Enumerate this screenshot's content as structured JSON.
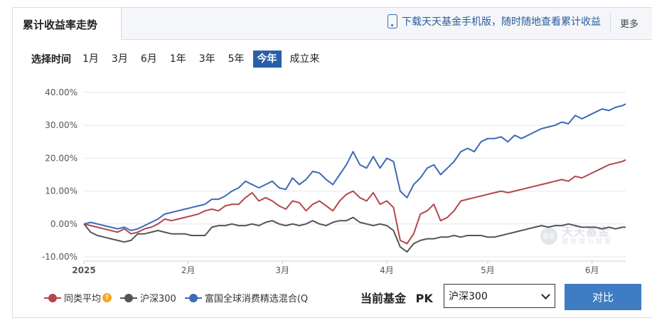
{
  "header": {
    "tab_title": "累计收益率走势",
    "promo_text": "下载天天基金手机版，随时随地查看累计收益",
    "more_label": "更多"
  },
  "time_selector": {
    "label": "选择时间",
    "options": [
      "1月",
      "3月",
      "6月",
      "1年",
      "3年",
      "5年",
      "今年",
      "成立来"
    ],
    "active": "今年"
  },
  "watermark": {
    "main": "天天基金",
    "sub": "镀铁泼与财富",
    "logo": "基金"
  },
  "chart_data": {
    "type": "line",
    "title": "",
    "xlabel": "",
    "ylabel": "",
    "x_ticks": [
      "2025",
      "2月",
      "3月",
      "4月",
      "5月",
      "6月"
    ],
    "x_tick_days": [
      0,
      31,
      59,
      90,
      120,
      151
    ],
    "x_range_days": [
      0,
      161
    ],
    "y_ticks": [
      "40.00%",
      "30.00%",
      "20.00%",
      "10.00%",
      "0.00%",
      "-10.00%"
    ],
    "y_tick_values": [
      40,
      30,
      20,
      10,
      0,
      -10
    ],
    "ylim": [
      -10,
      40
    ],
    "grid": "horizontal",
    "legend_position": "bottom-left",
    "series": [
      {
        "name": "同类平均",
        "color": "#b4474c",
        "x": [
          0,
          2,
          4,
          6,
          8,
          10,
          12,
          14,
          16,
          18,
          20,
          22,
          24,
          26,
          28,
          30,
          32,
          34,
          36,
          38,
          40,
          42,
          44,
          46,
          48,
          50,
          52,
          54,
          56,
          58,
          60,
          62,
          64,
          66,
          68,
          70,
          72,
          74,
          76,
          78,
          80,
          82,
          84,
          86,
          88,
          90,
          92,
          94,
          96,
          98,
          100,
          102,
          104,
          106,
          108,
          110,
          112,
          114,
          116,
          118,
          120,
          122,
          124,
          126,
          128,
          130,
          132,
          134,
          136,
          138,
          140,
          142,
          144,
          146,
          148,
          150,
          152,
          154,
          156,
          158,
          160,
          161
        ],
        "values": [
          0,
          -0.5,
          -1,
          -1.5,
          -2,
          -2.5,
          -1.5,
          -3,
          -2.5,
          -1.5,
          -1,
          0,
          1.5,
          1,
          1.5,
          2,
          2.5,
          3,
          4,
          4.5,
          4,
          5.5,
          6,
          6,
          8,
          9.5,
          7,
          8,
          7,
          5.5,
          4.5,
          7,
          6.5,
          4,
          6,
          7,
          5.5,
          4,
          7,
          9,
          10,
          8,
          7,
          9.5,
          6,
          7,
          5,
          -5,
          -6,
          -3,
          3,
          4,
          6,
          1,
          2,
          4,
          7,
          7.5,
          8,
          8.5,
          9,
          9.5,
          10,
          9.5,
          10,
          10.5,
          11,
          11.5,
          12,
          12.5,
          13,
          13.5,
          13,
          14.5,
          14,
          15,
          16,
          17,
          18,
          18.5,
          19,
          19.5
        ]
      },
      {
        "name": "沪深300",
        "color": "#555555",
        "x": [
          0,
          2,
          4,
          6,
          8,
          10,
          12,
          14,
          16,
          18,
          20,
          22,
          24,
          26,
          28,
          30,
          32,
          34,
          36,
          38,
          40,
          42,
          44,
          46,
          48,
          50,
          52,
          54,
          56,
          58,
          60,
          62,
          64,
          66,
          68,
          70,
          72,
          74,
          76,
          78,
          80,
          82,
          84,
          86,
          88,
          90,
          92,
          94,
          96,
          98,
          100,
          102,
          104,
          106,
          108,
          110,
          112,
          114,
          116,
          118,
          120,
          122,
          124,
          126,
          128,
          130,
          132,
          134,
          136,
          138,
          140,
          142,
          144,
          146,
          148,
          150,
          152,
          154,
          156,
          158,
          160,
          161
        ],
        "values": [
          0,
          -2.5,
          -3.5,
          -4,
          -4.5,
          -5,
          -5.5,
          -5,
          -3,
          -3,
          -2.5,
          -2,
          -2.5,
          -3,
          -3,
          -3,
          -3.5,
          -3.5,
          -3.5,
          -1,
          -0.5,
          -0.5,
          0,
          -0.5,
          -0.5,
          0,
          -0.5,
          0.5,
          1,
          0,
          -0.5,
          0,
          -0.5,
          0,
          1,
          0,
          -0.5,
          0.5,
          1,
          1,
          2,
          0.5,
          0,
          -0.5,
          0,
          -0.5,
          -2,
          -7,
          -8.5,
          -6,
          -5,
          -4.5,
          -4.5,
          -4,
          -4,
          -3.5,
          -4,
          -3.5,
          -3.5,
          -3.5,
          -4,
          -4,
          -3.5,
          -3,
          -2.5,
          -2,
          -1.5,
          -1,
          -0.5,
          -1,
          -0.5,
          -0.5,
          0,
          -0.5,
          -1,
          -1,
          -1,
          -1.5,
          -1,
          -1.5,
          -1,
          -1
        ]
      },
      {
        "name": "富国全球消费精选混合(Q",
        "color": "#3d6ab5",
        "x": [
          0,
          2,
          4,
          6,
          8,
          10,
          12,
          14,
          16,
          18,
          20,
          22,
          24,
          26,
          28,
          30,
          32,
          34,
          36,
          38,
          40,
          42,
          44,
          46,
          48,
          50,
          52,
          54,
          56,
          58,
          60,
          62,
          64,
          66,
          68,
          70,
          72,
          74,
          76,
          78,
          80,
          82,
          84,
          86,
          88,
          90,
          92,
          94,
          96,
          98,
          100,
          102,
          104,
          106,
          108,
          110,
          112,
          114,
          116,
          118,
          120,
          122,
          124,
          126,
          128,
          130,
          132,
          134,
          136,
          138,
          140,
          142,
          144,
          146,
          148,
          150,
          152,
          154,
          156,
          158,
          160,
          161
        ],
        "values": [
          0,
          0.5,
          0,
          -0.5,
          -1,
          -1.5,
          -1,
          -2,
          -1.5,
          -0.5,
          0.5,
          1.5,
          3,
          3.5,
          4,
          4.5,
          5,
          5.5,
          6,
          7.5,
          7.5,
          8.5,
          10,
          11,
          13,
          12,
          11,
          12,
          13,
          11,
          10.5,
          14,
          12,
          13.5,
          16,
          15.5,
          13.5,
          12,
          15,
          18,
          22,
          18,
          17,
          20.5,
          17,
          20,
          19,
          10,
          8,
          12,
          14,
          17,
          18,
          15,
          17,
          19,
          22,
          23,
          22,
          25,
          26,
          26,
          26.5,
          25,
          27,
          26,
          27,
          28,
          29,
          29.5,
          30,
          31,
          30.5,
          33,
          32,
          33,
          34,
          35,
          34.5,
          35.5,
          36,
          36.5
        ]
      }
    ]
  },
  "compare": {
    "current_label": "当前基金",
    "pk_label": "PK",
    "selected": "沪深300",
    "button_label": "对比"
  }
}
